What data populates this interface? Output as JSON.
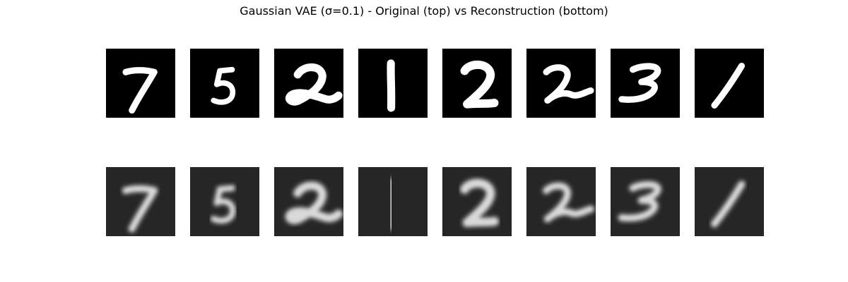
{
  "figure": {
    "title": "Gaussian VAE (σ=0.1) - Original (top) vs Reconstruction (bottom)"
  },
  "rows": [
    {
      "name": "original",
      "digits": [
        "7",
        "5",
        "2",
        "1",
        "2",
        "2",
        "3",
        "1"
      ],
      "background": "#000000",
      "stroke": "#ffffff"
    },
    {
      "name": "reconstruction",
      "digits": [
        "7",
        "5",
        "2",
        "1",
        "2",
        "2",
        "3",
        "1"
      ],
      "background": "#262626",
      "stroke": "#d9d9d9"
    }
  ]
}
